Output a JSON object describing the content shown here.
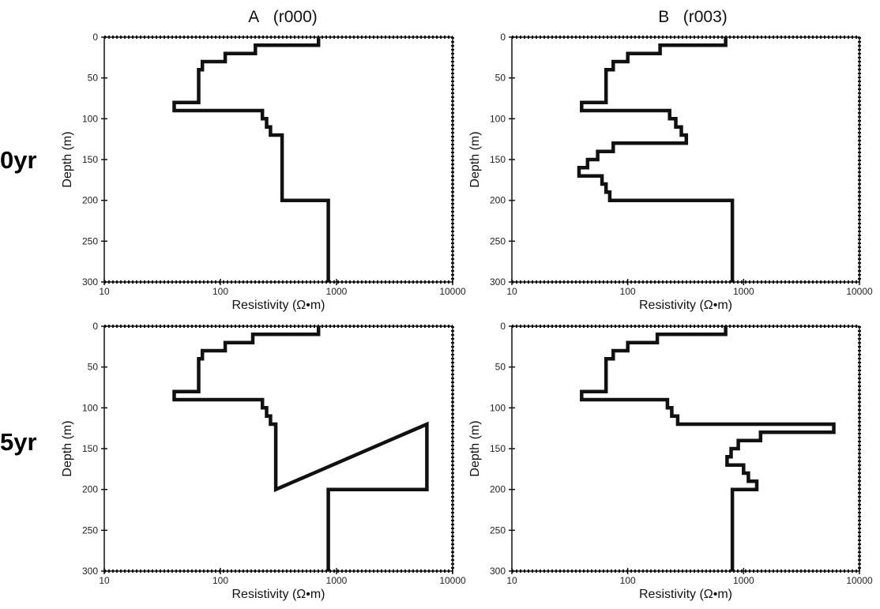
{
  "column_titles": [
    "A   (r000)",
    "B   (r003)"
  ],
  "row_labels": [
    "0yr",
    "5yr"
  ],
  "colors": {
    "line": "#111111",
    "frame": "#111111"
  },
  "chart_data": [
    {
      "type": "line",
      "column": "A (r000)",
      "row": "0yr",
      "xlabel": "Resistivity (Ω•m)",
      "ylabel": "Depth (m)",
      "xscale": "log",
      "xlim": [
        10,
        10000
      ],
      "ylim": [
        300,
        0
      ],
      "xticks": [
        "10",
        "100",
        "1000",
        "10000"
      ],
      "yticks": [
        "0",
        "50",
        "100",
        "150",
        "200",
        "250",
        "300"
      ],
      "grid": false,
      "series": [
        {
          "values": [
            [
              700,
              0
            ],
            [
              700,
              10
            ],
            [
              200,
              10
            ],
            [
              200,
              20
            ],
            [
              110,
              20
            ],
            [
              110,
              30
            ],
            [
              70,
              30
            ],
            [
              70,
              40
            ],
            [
              65,
              40
            ],
            [
              65,
              80
            ],
            [
              40,
              80
            ],
            [
              40,
              90
            ],
            [
              230,
              90
            ],
            [
              230,
              100
            ],
            [
              250,
              100
            ],
            [
              250,
              110
            ],
            [
              270,
              110
            ],
            [
              270,
              120
            ],
            [
              340,
              120
            ],
            [
              340,
              200
            ],
            [
              850,
              200
            ],
            [
              850,
              300
            ]
          ]
        }
      ]
    },
    {
      "type": "line",
      "column": "B (r003)",
      "row": "0yr",
      "xlabel": "Resistivity (Ω•m)",
      "ylabel": "Depth (m)",
      "xscale": "log",
      "xlim": [
        10,
        10000
      ],
      "ylim": [
        300,
        0
      ],
      "xticks": [
        "10",
        "100",
        "1000",
        "10000"
      ],
      "yticks": [
        "0",
        "50",
        "100",
        "150",
        "200",
        "250",
        "300"
      ],
      "grid": false,
      "series": [
        {
          "values": [
            [
              700,
              0
            ],
            [
              700,
              10
            ],
            [
              190,
              10
            ],
            [
              190,
              20
            ],
            [
              100,
              20
            ],
            [
              100,
              30
            ],
            [
              75,
              30
            ],
            [
              75,
              40
            ],
            [
              65,
              40
            ],
            [
              65,
              80
            ],
            [
              40,
              80
            ],
            [
              40,
              90
            ],
            [
              230,
              90
            ],
            [
              230,
              100
            ],
            [
              260,
              100
            ],
            [
              260,
              110
            ],
            [
              290,
              110
            ],
            [
              290,
              120
            ],
            [
              320,
              120
            ],
            [
              320,
              130
            ],
            [
              75,
              130
            ],
            [
              75,
              140
            ],
            [
              55,
              140
            ],
            [
              55,
              150
            ],
            [
              45,
              150
            ],
            [
              45,
              160
            ],
            [
              38,
              160
            ],
            [
              38,
              170
            ],
            [
              60,
              170
            ],
            [
              60,
              180
            ],
            [
              65,
              180
            ],
            [
              65,
              190
            ],
            [
              70,
              190
            ],
            [
              70,
              200
            ],
            [
              800,
              200
            ],
            [
              800,
              300
            ]
          ]
        }
      ]
    },
    {
      "type": "line",
      "column": "A (r000)",
      "row": "5yr",
      "xlabel": "Resistivity (Ω•m)",
      "ylabel": "Depth (m)",
      "xscale": "log",
      "xlim": [
        10,
        10000
      ],
      "ylim": [
        300,
        0
      ],
      "xticks": [
        "10",
        "100",
        "1000",
        "10000"
      ],
      "yticks": [
        "0",
        "50",
        "100",
        "150",
        "200",
        "250",
        "300"
      ],
      "grid": false,
      "series": [
        {
          "values": [
            [
              700,
              0
            ],
            [
              700,
              10
            ],
            [
              190,
              10
            ],
            [
              190,
              20
            ],
            [
              110,
              20
            ],
            [
              110,
              30
            ],
            [
              70,
              30
            ],
            [
              70,
              40
            ],
            [
              65,
              40
            ],
            [
              65,
              80
            ],
            [
              40,
              80
            ],
            [
              40,
              90
            ],
            [
              230,
              90
            ],
            [
              230,
              100
            ],
            [
              250,
              100
            ],
            [
              250,
              110
            ],
            [
              270,
              110
            ],
            [
              270,
              120
            ],
            [
              300,
              120
            ],
            [
              300,
              200
            ],
            [
              6000,
              120
            ],
            [
              6000,
              200
            ],
            [
              850,
              200
            ],
            [
              850,
              300
            ]
          ]
        }
      ]
    },
    {
      "type": "line",
      "column": "B (r003)",
      "row": "5yr",
      "xlabel": "Resistivity (Ω•m)",
      "ylabel": "Depth (m)",
      "xscale": "log",
      "xlim": [
        10,
        10000
      ],
      "ylim": [
        300,
        0
      ],
      "xticks": [
        "10",
        "100",
        "1000",
        "10000"
      ],
      "yticks": [
        "0",
        "50",
        "100",
        "150",
        "200",
        "250",
        "300"
      ],
      "grid": false,
      "series": [
        {
          "values": [
            [
              700,
              0
            ],
            [
              700,
              10
            ],
            [
              180,
              10
            ],
            [
              180,
              20
            ],
            [
              100,
              20
            ],
            [
              100,
              30
            ],
            [
              75,
              30
            ],
            [
              75,
              40
            ],
            [
              65,
              40
            ],
            [
              65,
              80
            ],
            [
              40,
              80
            ],
            [
              40,
              90
            ],
            [
              220,
              90
            ],
            [
              220,
              100
            ],
            [
              240,
              100
            ],
            [
              240,
              110
            ],
            [
              270,
              110
            ],
            [
              270,
              120
            ],
            [
              300,
              120
            ],
            [
              6000,
              120
            ],
            [
              6000,
              130
            ],
            [
              1400,
              130
            ],
            [
              1400,
              140
            ],
            [
              900,
              140
            ],
            [
              900,
              150
            ],
            [
              780,
              150
            ],
            [
              780,
              160
            ],
            [
              720,
              160
            ],
            [
              720,
              170
            ],
            [
              1000,
              170
            ],
            [
              1000,
              180
            ],
            [
              1100,
              180
            ],
            [
              1100,
              190
            ],
            [
              1300,
              190
            ],
            [
              1300,
              200
            ],
            [
              800,
              200
            ],
            [
              800,
              300
            ]
          ]
        }
      ]
    }
  ]
}
